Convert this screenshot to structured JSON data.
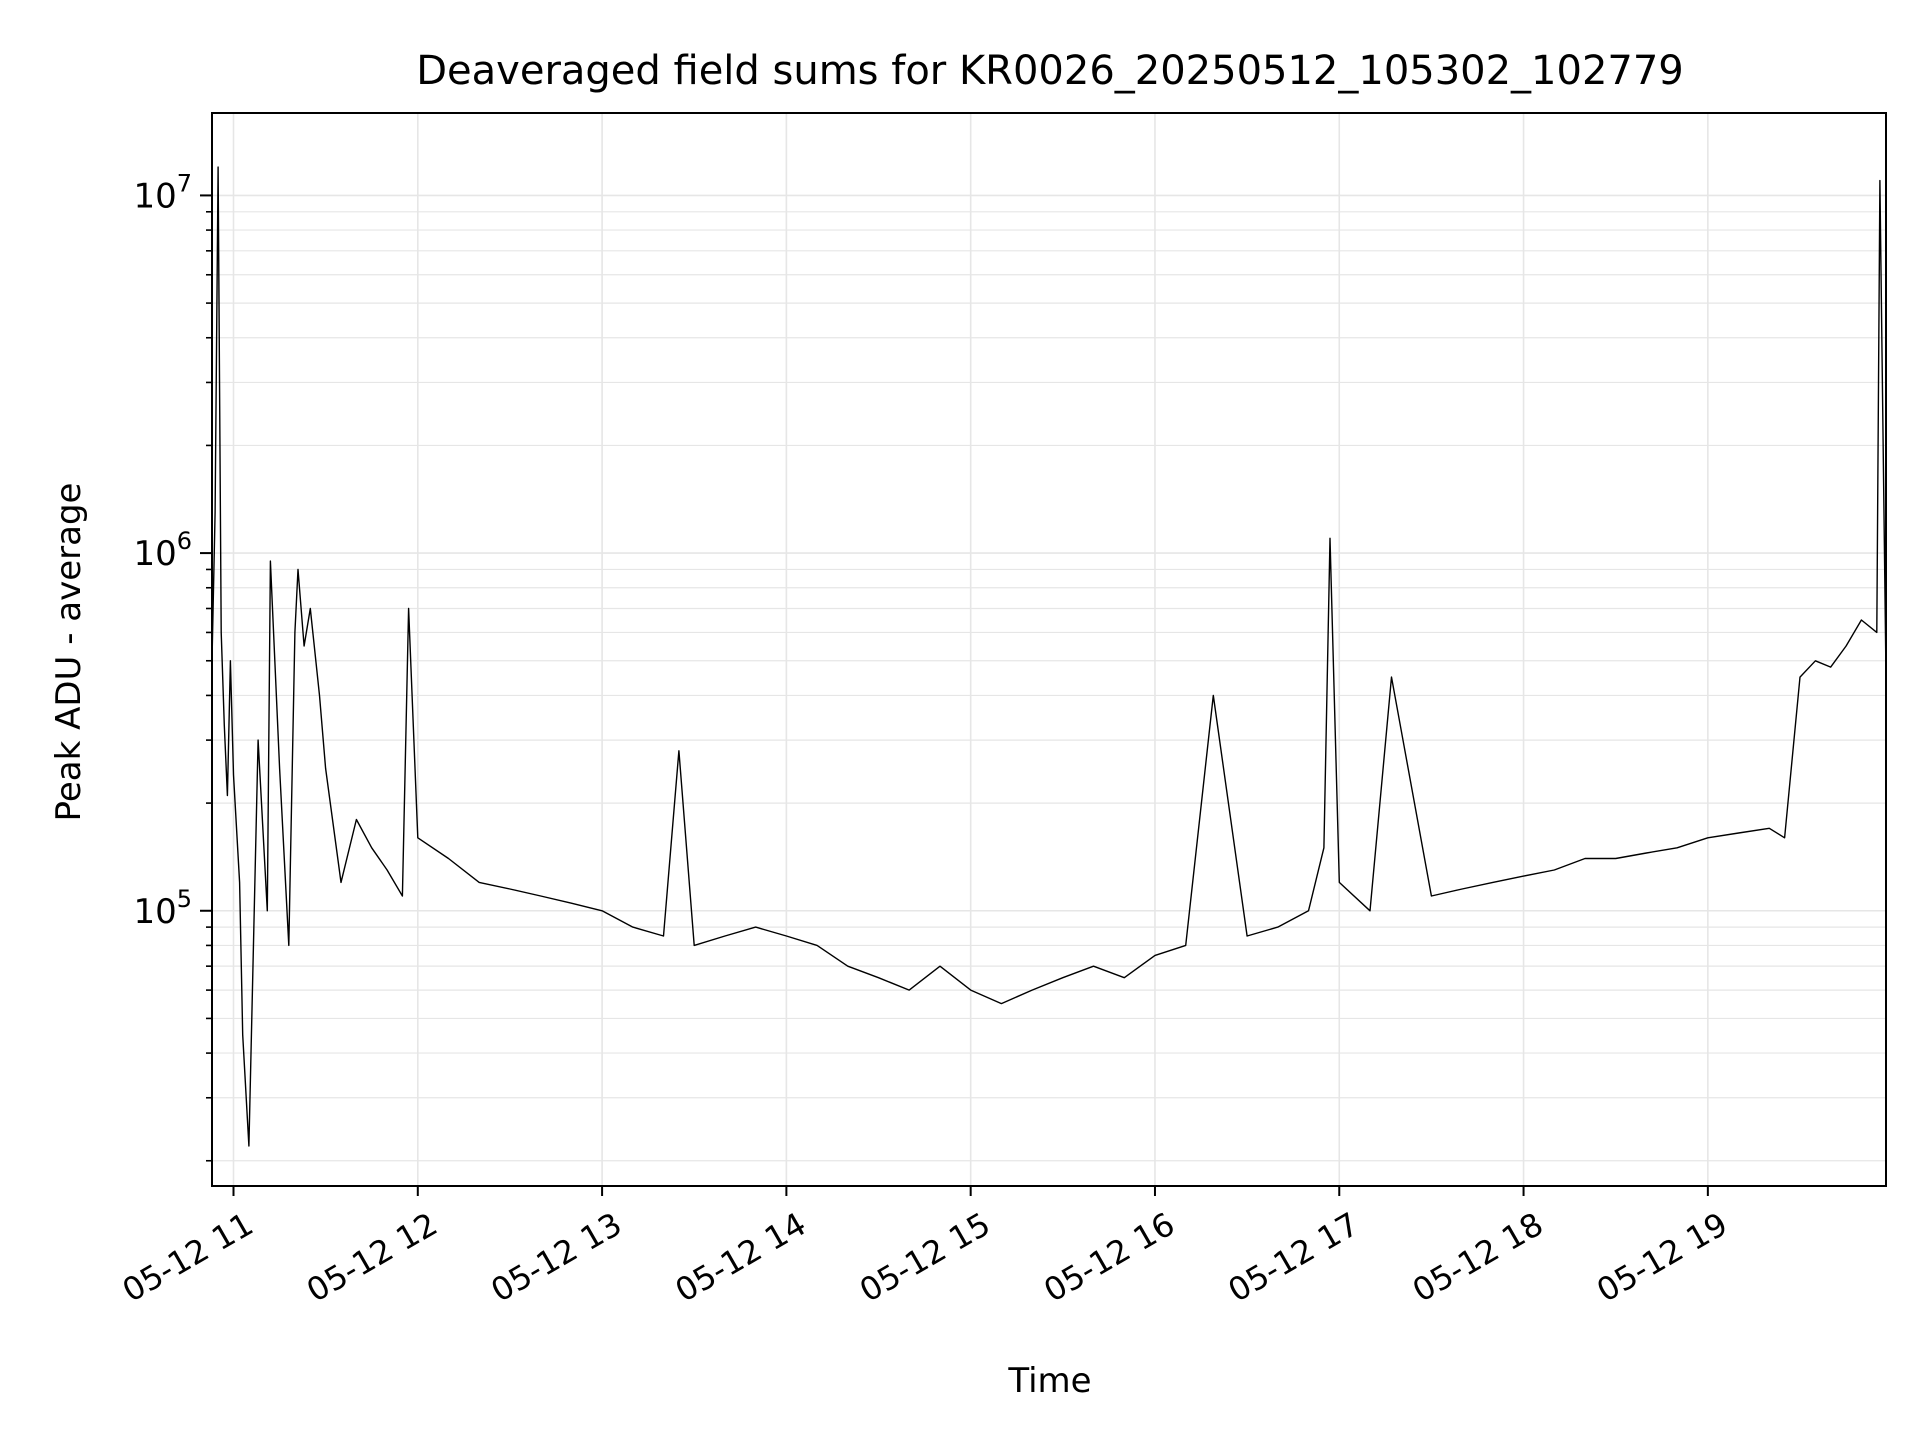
{
  "chart_data": {
    "type": "line",
    "title": "Deaveraged field sums for KR0026_20250512_105302_102779",
    "xlabel": "Time",
    "ylabel": "Peak ADU - average",
    "yscale": "log",
    "xlim": [
      "2025-05-12 10:53",
      "2025-05-12 19:58"
    ],
    "ylim": [
      17000,
      17000000
    ],
    "grid": true,
    "x_ticks": [
      {
        "value": "2025-05-12 11:00",
        "label": "05-12 11"
      },
      {
        "value": "2025-05-12 12:00",
        "label": "05-12 12"
      },
      {
        "value": "2025-05-12 13:00",
        "label": "05-12 13"
      },
      {
        "value": "2025-05-12 14:00",
        "label": "05-12 14"
      },
      {
        "value": "2025-05-12 15:00",
        "label": "05-12 15"
      },
      {
        "value": "2025-05-12 16:00",
        "label": "05-12 16"
      },
      {
        "value": "2025-05-12 17:00",
        "label": "05-12 17"
      },
      {
        "value": "2025-05-12 18:00",
        "label": "05-12 18"
      },
      {
        "value": "2025-05-12 19:00",
        "label": "05-12 19"
      }
    ],
    "y_ticks": [
      {
        "value": 100000,
        "base": "10",
        "exp": "5"
      },
      {
        "value": 1000000,
        "base": "10",
        "exp": "6"
      },
      {
        "value": 10000000,
        "base": "10",
        "exp": "7"
      }
    ],
    "line_color": "#000000",
    "grid_color": "#e6e6e6",
    "series": [
      {
        "x": [
          "2025-05-12 10:53",
          "2025-05-12 10:54",
          "2025-05-12 10:55",
          "2025-05-12 10:56",
          "2025-05-12 10:57",
          "2025-05-12 10:58",
          "2025-05-12 10:59",
          "2025-05-12 11:00",
          "2025-05-12 11:02",
          "2025-05-12 11:03",
          "2025-05-12 11:05",
          "2025-05-12 11:08",
          "2025-05-12 11:11",
          "2025-05-12 11:12",
          "2025-05-12 11:15",
          "2025-05-12 11:18",
          "2025-05-12 11:20",
          "2025-05-12 11:21",
          "2025-05-12 11:23",
          "2025-05-12 11:25",
          "2025-05-12 11:28",
          "2025-05-12 11:30",
          "2025-05-12 11:35",
          "2025-05-12 11:40",
          "2025-05-12 11:45",
          "2025-05-12 11:50",
          "2025-05-12 11:55",
          "2025-05-12 11:57",
          "2025-05-12 12:00",
          "2025-05-12 12:10",
          "2025-05-12 12:20",
          "2025-05-12 12:30",
          "2025-05-12 12:40",
          "2025-05-12 12:50",
          "2025-05-12 13:00",
          "2025-05-12 13:10",
          "2025-05-12 13:20",
          "2025-05-12 13:25",
          "2025-05-12 13:30",
          "2025-05-12 13:40",
          "2025-05-12 13:50",
          "2025-05-12 14:00",
          "2025-05-12 14:10",
          "2025-05-12 14:20",
          "2025-05-12 14:30",
          "2025-05-12 14:40",
          "2025-05-12 14:50",
          "2025-05-12 15:00",
          "2025-05-12 15:10",
          "2025-05-12 15:20",
          "2025-05-12 15:30",
          "2025-05-12 15:40",
          "2025-05-12 15:50",
          "2025-05-12 16:00",
          "2025-05-12 16:10",
          "2025-05-12 16:19",
          "2025-05-12 16:30",
          "2025-05-12 16:40",
          "2025-05-12 16:50",
          "2025-05-12 16:55",
          "2025-05-12 16:57",
          "2025-05-12 17:00",
          "2025-05-12 17:10",
          "2025-05-12 17:17",
          "2025-05-12 17:30",
          "2025-05-12 17:40",
          "2025-05-12 17:50",
          "2025-05-12 18:00",
          "2025-05-12 18:10",
          "2025-05-12 18:20",
          "2025-05-12 18:30",
          "2025-05-12 18:40",
          "2025-05-12 18:50",
          "2025-05-12 19:00",
          "2025-05-12 19:10",
          "2025-05-12 19:20",
          "2025-05-12 19:25",
          "2025-05-12 19:30",
          "2025-05-12 19:35",
          "2025-05-12 19:40",
          "2025-05-12 19:45",
          "2025-05-12 19:50",
          "2025-05-12 19:55",
          "2025-05-12 19:56",
          "2025-05-12 19:58"
        ],
        "y": [
          500000,
          1300000,
          12000000,
          600000,
          330000,
          210000,
          500000,
          240000,
          120000,
          45000,
          22000,
          300000,
          100000,
          950000,
          250000,
          80000,
          600000,
          900000,
          550000,
          700000,
          400000,
          250000,
          120000,
          180000,
          150000,
          130000,
          110000,
          700000,
          160000,
          140000,
          120000,
          115000,
          110000,
          105000,
          100000,
          90000,
          85000,
          280000,
          80000,
          85000,
          90000,
          85000,
          80000,
          70000,
          65000,
          60000,
          70000,
          60000,
          55000,
          60000,
          65000,
          70000,
          65000,
          75000,
          80000,
          400000,
          85000,
          90000,
          100000,
          150000,
          1100000,
          120000,
          100000,
          450000,
          110000,
          115000,
          120000,
          125000,
          130000,
          140000,
          140000,
          145000,
          150000,
          160000,
          165000,
          170000,
          160000,
          450000,
          500000,
          480000,
          550000,
          650000,
          600000,
          11000000,
          450000
        ]
      }
    ]
  }
}
